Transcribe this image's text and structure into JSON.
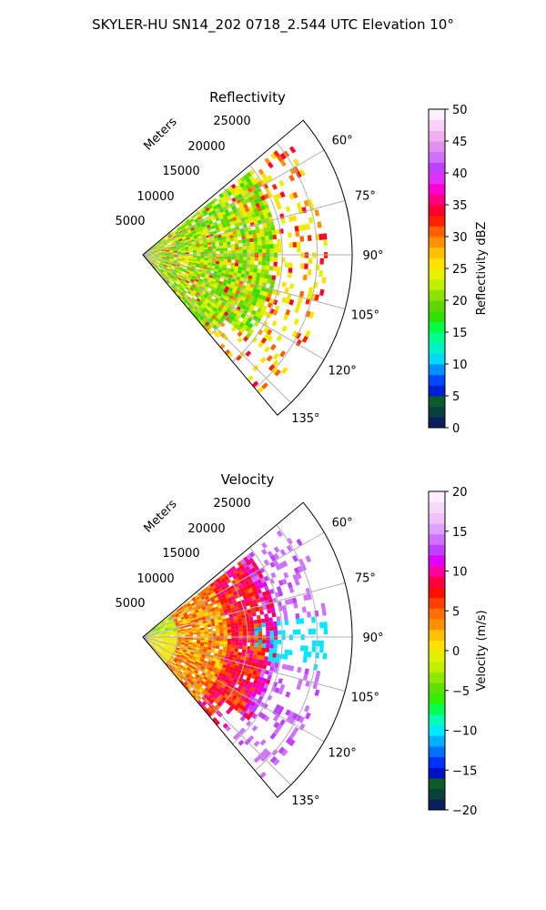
{
  "figure": {
    "title": "SKYLER-HU  SN14_202  0718_2.544 UTC Elevation 10°"
  },
  "chart_data": [
    {
      "type": "heatmap",
      "projection": "polar-sector",
      "title": "Reflectivity",
      "radial_axis_label": "Meters",
      "radial_ticks": [
        5000,
        10000,
        15000,
        20000,
        25000
      ],
      "radial_tick_labels": [
        "5000",
        "10000",
        "15000",
        "20000",
        "25000"
      ],
      "radial_range": [
        0,
        30000
      ],
      "azimuth_range_deg": [
        50,
        140
      ],
      "azimuth_ticks_deg": [
        60,
        75,
        90,
        105,
        120,
        135
      ],
      "azimuth_tick_labels": [
        "60°",
        "75°",
        "90°",
        "105°",
        "120°",
        "135°"
      ],
      "grid": true,
      "colorbar": {
        "label": "Reflectivity dBZ",
        "range": [
          0,
          50
        ],
        "ticks": [
          0,
          5,
          10,
          15,
          20,
          25,
          30,
          35,
          40,
          45,
          50
        ],
        "tick_labels": [
          "0",
          "5",
          "10",
          "15",
          "20",
          "25",
          "30",
          "35",
          "40",
          "45",
          "50"
        ],
        "colors": [
          "#0a1f5c",
          "#0a3f3a",
          "#0d5a2a",
          "#001fd0",
          "#0048ff",
          "#0090ff",
          "#00d8ff",
          "#00f0c8",
          "#00ff90",
          "#00ff40",
          "#30e000",
          "#60d800",
          "#90e000",
          "#c0f000",
          "#e8f000",
          "#ffe000",
          "#ffc000",
          "#ff9000",
          "#ff6000",
          "#ff2000",
          "#ff0030",
          "#ff0080",
          "#ff00d0",
          "#e030ff",
          "#c040ff",
          "#d070ff",
          "#e090f0",
          "#f0b0f0",
          "#f8d0f8",
          "#fff0ff"
        ]
      }
    },
    {
      "type": "heatmap",
      "projection": "polar-sector",
      "title": "Velocity",
      "radial_axis_label": "Meters",
      "radial_ticks": [
        5000,
        10000,
        15000,
        20000,
        25000
      ],
      "radial_tick_labels": [
        "5000",
        "10000",
        "15000",
        "20000",
        "25000"
      ],
      "radial_range": [
        0,
        30000
      ],
      "azimuth_range_deg": [
        50,
        140
      ],
      "azimuth_ticks_deg": [
        60,
        75,
        90,
        105,
        120,
        135
      ],
      "azimuth_tick_labels": [
        "60°",
        "75°",
        "90°",
        "105°",
        "120°",
        "135°"
      ],
      "grid": true,
      "colorbar": {
        "label": "Velocity (m/s)",
        "range": [
          -20,
          20
        ],
        "ticks": [
          -20,
          -15,
          -10,
          -5,
          0,
          5,
          10,
          15,
          20
        ],
        "tick_labels": [
          "−20",
          "−15",
          "−10",
          "−5",
          "0",
          "5",
          "10",
          "15",
          "20"
        ],
        "colors": [
          "#0a1f5c",
          "#0a3f3a",
          "#0d5a2a",
          "#0010c0",
          "#0030ff",
          "#0070ff",
          "#00b0ff",
          "#00e8ff",
          "#00ffb0",
          "#00ff50",
          "#30f000",
          "#60e000",
          "#90e800",
          "#c0f000",
          "#e0f000",
          "#ffe000",
          "#ffc000",
          "#ff9000",
          "#ff7000",
          "#ff4000",
          "#ff1000",
          "#ff0040",
          "#ff00a0",
          "#e000ff",
          "#c040ff",
          "#d070ff",
          "#e0a0ff",
          "#f0c0f8",
          "#f8d8f8",
          "#ffeeff"
        ]
      }
    }
  ]
}
